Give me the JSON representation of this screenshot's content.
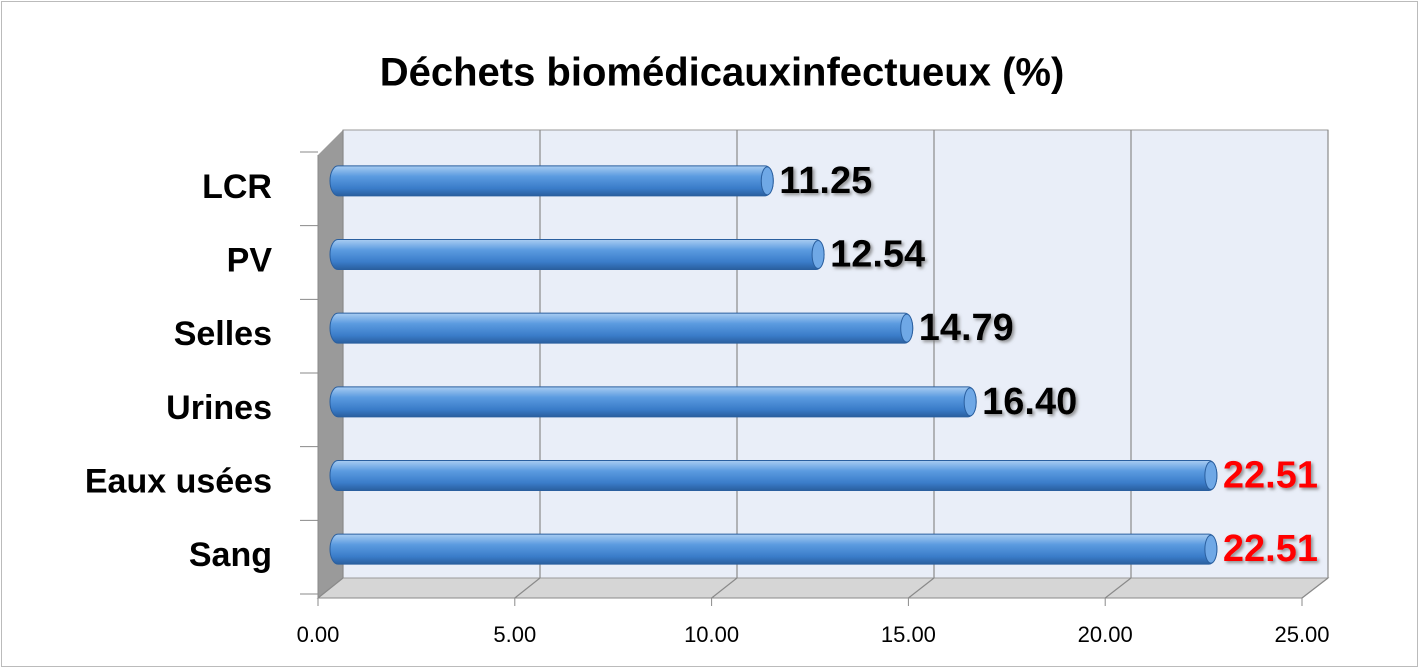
{
  "chart_data": {
    "type": "bar",
    "orientation": "horizontal",
    "title": "Déchets biomédicauxinfectueux (%)",
    "categories": [
      "Sang",
      "Eaux usées",
      "Urines",
      "Selles",
      "PV",
      "LCR"
    ],
    "values": [
      22.51,
      22.51,
      16.4,
      14.79,
      12.54,
      11.25
    ],
    "value_labels": [
      "22.51",
      "22.51",
      "16.40",
      "14.79",
      "12.54",
      "11.25"
    ],
    "label_colors": [
      "#ff0000",
      "#ff0000",
      "#000000",
      "#000000",
      "#000000",
      "#000000"
    ],
    "color": "#4a8fd8",
    "xlim": [
      0,
      25
    ],
    "xticks": [
      {
        "value": 0,
        "label": "0.00"
      },
      {
        "value": 5,
        "label": "5.00"
      },
      {
        "value": 10,
        "label": "10.00"
      },
      {
        "value": 15,
        "label": "15.00"
      },
      {
        "value": 20,
        "label": "20.00"
      },
      {
        "value": 25,
        "label": "25.00"
      }
    ],
    "grid": true
  }
}
